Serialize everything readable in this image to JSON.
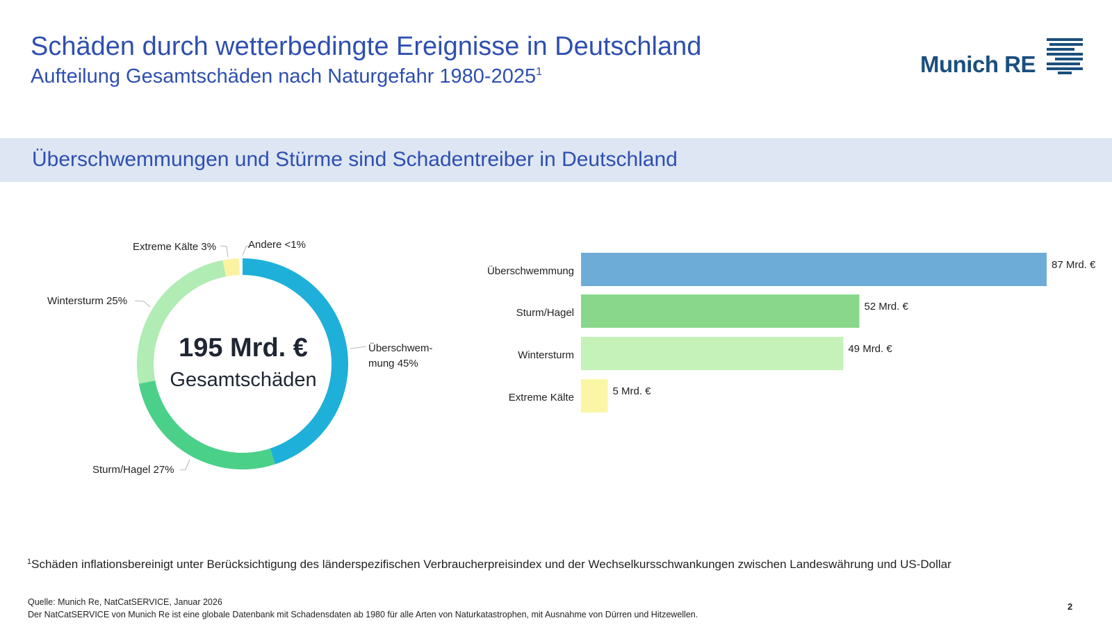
{
  "header": {
    "title": "Schäden durch wetterbedingte Ereignisse in Deutschland",
    "subtitle": "Aufteilung Gesamtschäden nach Naturgefahr 1980-2025",
    "subtitle_sup": "1"
  },
  "logo": {
    "text": "Munich RE",
    "color": "#1b4f7e"
  },
  "banner": {
    "text": "Überschwemmungen und Stürme sind Schadentreiber in Deutschland"
  },
  "chart_data": [
    {
      "type": "pie",
      "center_value": "195 Mrd. €",
      "center_label": "Gesamtschäden",
      "slices": [
        {
          "label": "Überschwem-mung 45%",
          "label_line1": "Überschwem-",
          "label_line2": "mung 45%",
          "value": 45,
          "color": "#1fb0da"
        },
        {
          "label": "Sturm/Hagel 27%",
          "value": 27,
          "color": "#4bd08a"
        },
        {
          "label": "Wintersturm 25%",
          "value": 25,
          "color": "#b0ecb4"
        },
        {
          "label": "Extreme Kälte 3%",
          "value": 2.5,
          "color": "#fbf3a2"
        },
        {
          "label": "Andere <1%",
          "value": 0.5,
          "color": "#ffffff"
        }
      ]
    },
    {
      "type": "bar",
      "orientation": "horizontal",
      "categories": [
        "Überschwemmung",
        "Sturm/Hagel",
        "Wintersturm",
        "Extreme Kälte"
      ],
      "values": [
        87,
        52,
        49,
        5
      ],
      "value_labels": [
        "87 Mrd. €",
        "52 Mrd. €",
        "49 Mrd. €",
        "5 Mrd. €"
      ],
      "colors": [
        "#6dacd6",
        "#88d78b",
        "#c4f2b9",
        "#fbf6a6"
      ],
      "unit": "Mrd. €",
      "xlim": [
        0,
        87
      ]
    }
  ],
  "footer": {
    "footnote_sup": "1",
    "footnote": "Schäden inflationsbereinigt unter Berücksichtigung des länderspezifischen Verbraucherpreisindex und der Wechselkursschwankungen zwischen Landeswährung und US-Dollar",
    "source": "Quelle: Munich Re, NatCatSERVICE, Januar 2026",
    "note": "Der NatCatSERVICE von Munich Re ist eine globale Datenbank mit Schadensdaten ab 1980 für alle Arten von Naturkatastrophen, mit Ausnahme von Dürren und Hitzewellen.",
    "page": "2"
  }
}
